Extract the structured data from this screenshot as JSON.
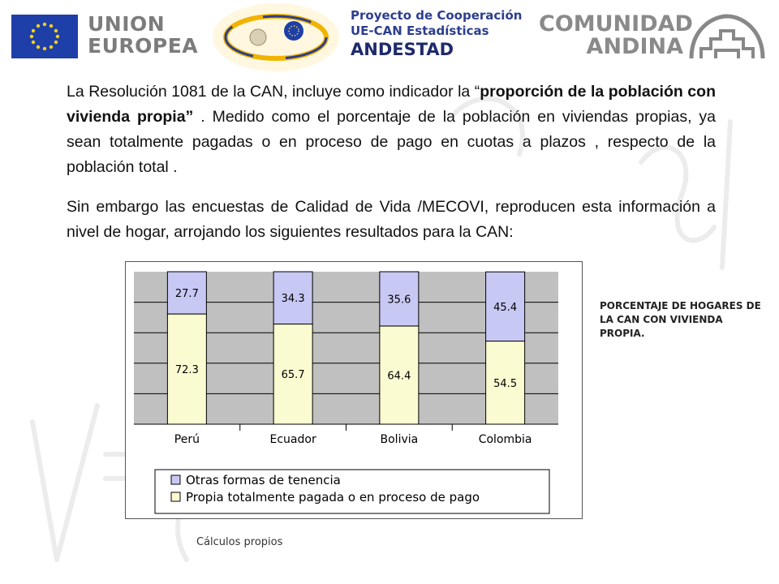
{
  "header": {
    "eu_line1": "UNION",
    "eu_line2": "EUROPEA",
    "project_line1": "Proyecto de Cooperación",
    "project_line2": "UE-CAN Estadísticas",
    "project_line3": "ANDESTAD",
    "can_line1": "COMUNIDAD",
    "can_line2": "ANDINA"
  },
  "text": {
    "p1_part1": "La Resolución 1081 de la CAN, incluye como indicador la  “",
    "p1_bold": "proporción de la población con vivienda propia”",
    "p1_part2": " . Medido como el porcentaje de la población en viviendas propias, ya sean totalmente pagadas o en proceso de pago en cuotas a plazos , respecto de la población total .",
    "p2": "Sin embargo las encuestas de Calidad de Vida /MECOVI, reproducen esta información a nivel de hogar, arrojando los siguientes resultados para la CAN:"
  },
  "side_title": "PORCENTAJE DE HOGARES DE LA CAN CON VIVIENDA PROPIA.",
  "source": "Cálculos propios",
  "colors": {
    "bar_top": "#c8c8f4",
    "bar_bottom": "#fbfbd2",
    "plot_bg": "#c0c0c0",
    "header_blue": "#2d3e8f"
  },
  "chart_data": {
    "type": "bar",
    "stacked": true,
    "percent": true,
    "categories": [
      "Perú",
      "Ecuador",
      "Bolivia",
      "Colombia"
    ],
    "series": [
      {
        "name": "Propia totalmente pagada o en proceso de pago",
        "values": [
          72.3,
          65.7,
          64.4,
          54.5
        ],
        "color": "#fbfbd2"
      },
      {
        "name": "Otras formas de tenencia",
        "values": [
          27.7,
          34.3,
          35.6,
          45.4
        ],
        "color": "#c8c8f4"
      }
    ],
    "ylim": [
      0,
      100
    ],
    "grid": true,
    "legend": "bottom"
  }
}
